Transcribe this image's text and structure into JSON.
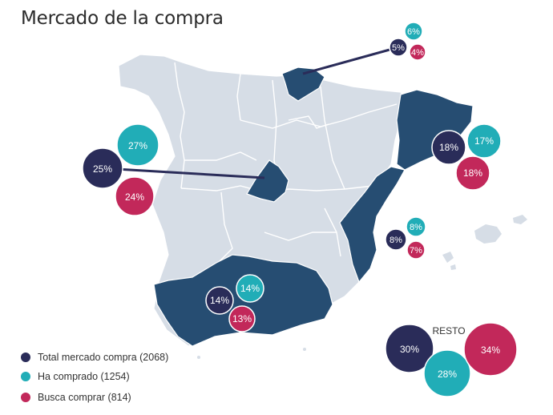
{
  "title": "Mercado de la compra",
  "colors": {
    "total": "#2a2c59",
    "ha_comprado": "#21adb7",
    "busca": "#c2285a",
    "highlight_region": "#264d72",
    "other_region": "#d6dde6"
  },
  "legend": [
    {
      "label": "Total mercado compra (2068)",
      "color": "#2a2c59"
    },
    {
      "label": "Ha comprado (1254)",
      "color": "#21adb7"
    },
    {
      "label": "Busca comprar (814)",
      "color": "#c2285a"
    }
  ],
  "regions": [
    {
      "name": "Pais Vasco",
      "total": "5%",
      "ha_comprado": "6%",
      "busca": "4%"
    },
    {
      "name": "Madrid",
      "total": "25%",
      "ha_comprado": "27%",
      "busca": "24%"
    },
    {
      "name": "Cataluna",
      "total": "18%",
      "ha_comprado": "17%",
      "busca": "18%"
    },
    {
      "name": "Comunidad Valenciana",
      "total": "8%",
      "ha_comprado": "8%",
      "busca": "7%"
    },
    {
      "name": "Andalucia",
      "total": "14%",
      "ha_comprado": "14%",
      "busca": "13%"
    }
  ],
  "resto": {
    "label": "RESTO",
    "total": "30%",
    "ha_comprado": "28%",
    "busca": "34%"
  }
}
